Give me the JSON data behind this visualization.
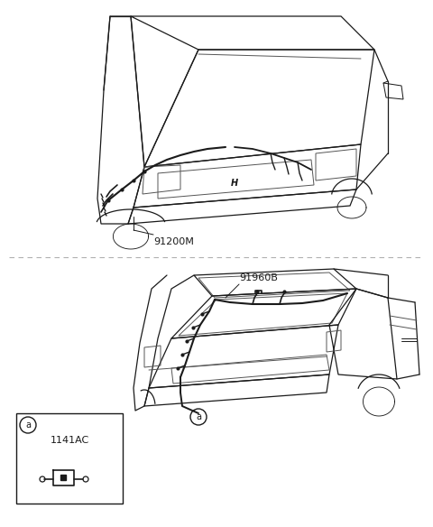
{
  "background_color": "#ffffff",
  "fig_width": 4.8,
  "fig_height": 5.84,
  "dpi": 100,
  "top_label": "91200M",
  "bottom_label": "91960B",
  "inset_label": "1141AC",
  "inset_circle_label": "a",
  "bottom_circle_label": "a",
  "divider_color": "#b0b0b0",
  "line_color": "#1a1a1a",
  "line_color_light": "#555555"
}
